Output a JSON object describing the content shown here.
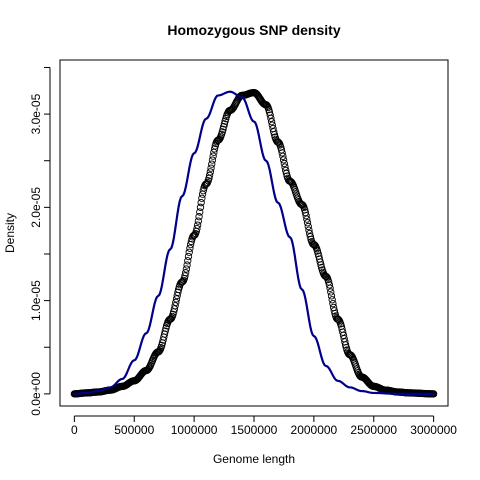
{
  "chart_data": {
    "type": "line",
    "title": "Homozygous SNP density",
    "xlabel": "Genome length",
    "ylabel": "Density",
    "xlim": [
      -120000,
      3120000
    ],
    "ylim": [
      -1.3e-06,
      3.58e-05
    ],
    "x_ticks": [
      0,
      500000,
      1000000,
      1500000,
      2000000,
      2500000,
      3000000
    ],
    "x_tick_labels": [
      "0",
      "500000",
      "1000000",
      "1500000",
      "2000000",
      "2500000",
      "3000000"
    ],
    "y_ticks": [
      0,
      5e-06,
      1e-05,
      1.5e-05,
      2e-05,
      2.5e-05,
      3e-05,
      3.5e-05
    ],
    "y_tick_labels": [
      "0.0e+00",
      "",
      "1.0e-05",
      "",
      "2.0e-05",
      "",
      "3.0e-05",
      ""
    ],
    "grid": false,
    "legend": "none",
    "series": [
      {
        "style": "line",
        "color": "#00008b",
        "points": [
          [
            0,
            0
          ],
          [
            100000,
            1e-07
          ],
          [
            200000,
            3e-07
          ],
          [
            300000,
            7e-07
          ],
          [
            400000,
            1.6e-06
          ],
          [
            500000,
            3.6e-06
          ],
          [
            600000,
            6.5e-06
          ],
          [
            700000,
            1.05e-05
          ],
          [
            800000,
            1.55e-05
          ],
          [
            900000,
            2.12e-05
          ],
          [
            1000000,
            2.58e-05
          ],
          [
            1100000,
            2.95e-05
          ],
          [
            1200000,
            3.2e-05
          ],
          [
            1300000,
            3.24e-05
          ],
          [
            1400000,
            3.18e-05
          ],
          [
            1500000,
            2.92e-05
          ],
          [
            1600000,
            2.5e-05
          ],
          [
            1700000,
            2.05e-05
          ],
          [
            1800000,
            1.68e-05
          ],
          [
            1900000,
            1.12e-05
          ],
          [
            2000000,
            6.2e-06
          ],
          [
            2100000,
            3e-06
          ],
          [
            2200000,
            1.4e-06
          ],
          [
            2300000,
            7e-07
          ],
          [
            2400000,
            3e-07
          ],
          [
            2500000,
            1e-07
          ],
          [
            2700000,
            0.0
          ],
          [
            3000000,
            0.0
          ]
        ]
      },
      {
        "style": "points",
        "color": "#000000",
        "points": [
          [
            0,
            0
          ],
          [
            100000,
            1e-07
          ],
          [
            200000,
            2e-07
          ],
          [
            300000,
            4e-07
          ],
          [
            400000,
            8e-07
          ],
          [
            500000,
            1.4e-06
          ],
          [
            600000,
            2.5e-06
          ],
          [
            700000,
            4.5e-06
          ],
          [
            800000,
            8e-06
          ],
          [
            900000,
            1.2e-05
          ],
          [
            1000000,
            1.7e-05
          ],
          [
            1100000,
            2.25e-05
          ],
          [
            1200000,
            2.72e-05
          ],
          [
            1300000,
            3.04e-05
          ],
          [
            1400000,
            3.2e-05
          ],
          [
            1500000,
            3.23e-05
          ],
          [
            1600000,
            3.1e-05
          ],
          [
            1700000,
            2.7e-05
          ],
          [
            1800000,
            2.28e-05
          ],
          [
            1900000,
            2.03e-05
          ],
          [
            2000000,
            1.6e-05
          ],
          [
            2100000,
            1.26e-05
          ],
          [
            2200000,
            8e-06
          ],
          [
            2300000,
            4.2e-06
          ],
          [
            2400000,
            1.8e-06
          ],
          [
            2500000,
            8e-07
          ],
          [
            2600000,
            4e-07
          ],
          [
            2700000,
            2e-07
          ],
          [
            2800000,
            1e-07
          ],
          [
            3000000,
            0.0
          ]
        ]
      }
    ]
  }
}
